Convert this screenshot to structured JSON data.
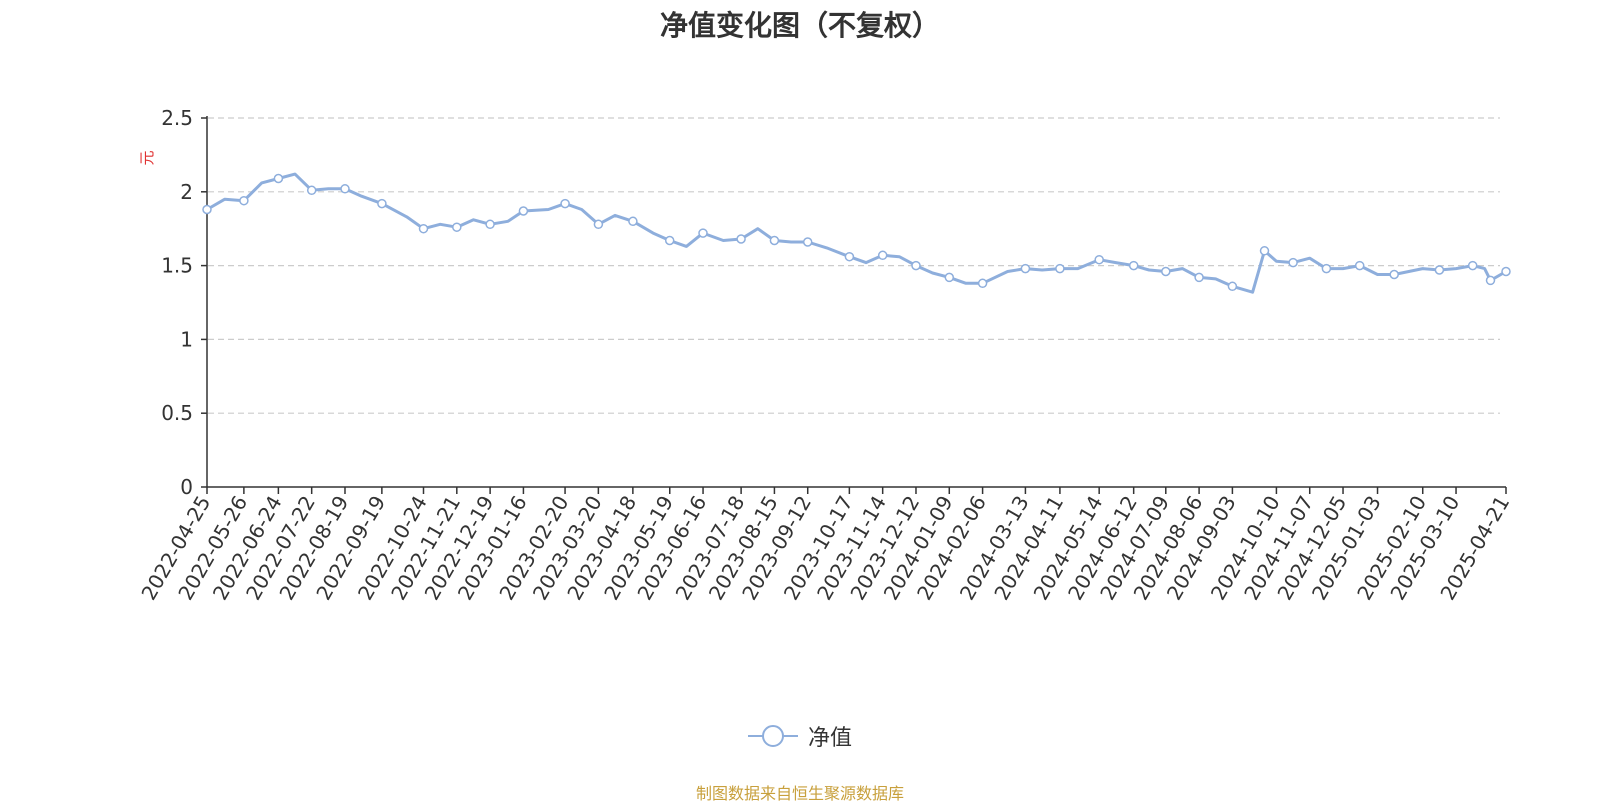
{
  "title": "净值变化图（不复权）",
  "source_note": "制图数据来自恒生聚源数据库",
  "colors": {
    "line": "#8eaedc",
    "grid": "#cccccc",
    "axis": "#333333",
    "ylabel": "#e03030",
    "source": "#c8a03c"
  },
  "chart_data": {
    "type": "line",
    "title": "净值变化图（不复权）",
    "ylabel": "元",
    "xlabel": "",
    "ylim": [
      0,
      2.5
    ],
    "yticks": [
      "0",
      "0.5",
      "1",
      "1.5",
      "2",
      "2.5"
    ],
    "grid": true,
    "legend_position": "bottom-center",
    "x_tick_labels": [
      "2022-04-25",
      "2022-05-26",
      "2022-06-24",
      "2022-07-22",
      "2022-08-19",
      "2022-09-19",
      "2022-10-24",
      "2022-11-21",
      "2022-12-19",
      "2023-01-16",
      "2023-02-20",
      "2023-03-20",
      "2023-04-18",
      "2023-05-19",
      "2023-06-16",
      "2023-07-18",
      "2023-08-15",
      "2023-09-12",
      "2023-10-17",
      "2023-11-14",
      "2023-12-12",
      "2024-01-09",
      "2024-02-06",
      "2024-03-13",
      "2024-04-11",
      "2024-05-14",
      "2024-06-12",
      "2024-07-09",
      "2024-08-06",
      "2024-09-03",
      "2024-10-10",
      "2024-11-07",
      "2024-12-05",
      "2025-01-03",
      "2025-02-10",
      "2025-03-10",
      "2025-04-21"
    ],
    "series": [
      {
        "name": "净值",
        "x": [
          "2022-04-25",
          "2022-05-10",
          "2022-05-26",
          "2022-06-10",
          "2022-06-24",
          "2022-07-08",
          "2022-07-22",
          "2022-08-05",
          "2022-08-19",
          "2022-09-02",
          "2022-09-19",
          "2022-10-10",
          "2022-10-24",
          "2022-11-07",
          "2022-11-21",
          "2022-12-05",
          "2022-12-19",
          "2023-01-03",
          "2023-01-16",
          "2023-02-06",
          "2023-02-20",
          "2023-03-06",
          "2023-03-20",
          "2023-04-03",
          "2023-04-18",
          "2023-05-05",
          "2023-05-19",
          "2023-06-02",
          "2023-06-16",
          "2023-07-03",
          "2023-07-18",
          "2023-08-01",
          "2023-08-15",
          "2023-08-29",
          "2023-09-12",
          "2023-09-28",
          "2023-10-17",
          "2023-10-31",
          "2023-11-14",
          "2023-11-28",
          "2023-12-12",
          "2023-12-26",
          "2024-01-09",
          "2024-01-23",
          "2024-02-06",
          "2024-02-27",
          "2024-03-13",
          "2024-03-27",
          "2024-04-11",
          "2024-04-26",
          "2024-05-14",
          "2024-05-28",
          "2024-06-12",
          "2024-06-25",
          "2024-07-09",
          "2024-07-23",
          "2024-08-06",
          "2024-08-20",
          "2024-09-03",
          "2024-09-20",
          "2024-09-30",
          "2024-10-10",
          "2024-10-24",
          "2024-11-07",
          "2024-11-21",
          "2024-12-05",
          "2024-12-19",
          "2025-01-03",
          "2025-01-17",
          "2025-02-10",
          "2025-02-24",
          "2025-03-10",
          "2025-03-24",
          "2025-04-03",
          "2025-04-08",
          "2025-04-21"
        ],
        "values": [
          1.88,
          1.95,
          1.94,
          2.06,
          2.09,
          2.12,
          2.01,
          2.02,
          2.02,
          1.97,
          1.92,
          1.83,
          1.75,
          1.78,
          1.76,
          1.81,
          1.78,
          1.8,
          1.87,
          1.88,
          1.92,
          1.88,
          1.78,
          1.84,
          1.8,
          1.72,
          1.67,
          1.63,
          1.72,
          1.67,
          1.68,
          1.75,
          1.67,
          1.66,
          1.66,
          1.62,
          1.56,
          1.52,
          1.57,
          1.56,
          1.5,
          1.45,
          1.42,
          1.38,
          1.38,
          1.46,
          1.48,
          1.47,
          1.48,
          1.48,
          1.54,
          1.52,
          1.5,
          1.47,
          1.46,
          1.48,
          1.42,
          1.41,
          1.36,
          1.32,
          1.6,
          1.53,
          1.52,
          1.55,
          1.48,
          1.48,
          1.5,
          1.44,
          1.44,
          1.48,
          1.47,
          1.48,
          1.5,
          1.48,
          1.4,
          1.46
        ]
      }
    ]
  }
}
